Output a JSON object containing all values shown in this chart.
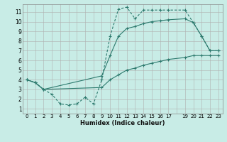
{
  "background_color": "#c8ece6",
  "grid_color": "#b0b0b0",
  "line_color": "#2d7a6e",
  "xlabel": "Humidex (Indice chaleur)",
  "xlim": [
    -0.5,
    23.5
  ],
  "ylim": [
    0.5,
    11.8
  ],
  "xtick_labels": [
    "0",
    "1",
    "2",
    "3",
    "4",
    "5",
    "6",
    "7",
    "8",
    "9",
    "10",
    "11",
    "12",
    "13",
    "14",
    "15",
    "16",
    "17",
    "",
    "19",
    "20",
    "21",
    "22",
    "23"
  ],
  "xtick_vals": [
    0,
    1,
    2,
    3,
    4,
    5,
    6,
    7,
    8,
    9,
    10,
    11,
    12,
    13,
    14,
    15,
    16,
    17,
    18,
    19,
    20,
    21,
    22,
    23
  ],
  "yticks": [
    1,
    2,
    3,
    4,
    5,
    6,
    7,
    8,
    9,
    10,
    11
  ],
  "line1_x": [
    0,
    1,
    2,
    3,
    4,
    5,
    6,
    7,
    8,
    9,
    10,
    11,
    12,
    13,
    14,
    15,
    16,
    17,
    19,
    20,
    21,
    22,
    23
  ],
  "line1_y": [
    4.0,
    3.7,
    3.0,
    2.5,
    1.5,
    1.4,
    1.5,
    2.2,
    1.5,
    4.0,
    8.5,
    11.3,
    11.5,
    10.3,
    11.2,
    11.2,
    11.2,
    11.2,
    11.2,
    9.9,
    8.5,
    7.0,
    7.0
  ],
  "line2_x": [
    0,
    1,
    2,
    9,
    10,
    11,
    12,
    13,
    14,
    15,
    16,
    17,
    19,
    20,
    21,
    22,
    23
  ],
  "line2_y": [
    4.0,
    3.7,
    3.0,
    4.4,
    6.5,
    8.5,
    9.3,
    9.5,
    9.8,
    10.0,
    10.1,
    10.2,
    10.3,
    9.9,
    8.5,
    7.0,
    7.0
  ],
  "line3_x": [
    0,
    1,
    2,
    9,
    10,
    11,
    12,
    13,
    14,
    15,
    16,
    17,
    19,
    20,
    21,
    22,
    23
  ],
  "line3_y": [
    4.0,
    3.7,
    3.0,
    3.2,
    4.0,
    4.5,
    5.0,
    5.2,
    5.5,
    5.7,
    5.9,
    6.1,
    6.3,
    6.5,
    6.5,
    6.5,
    6.5
  ]
}
